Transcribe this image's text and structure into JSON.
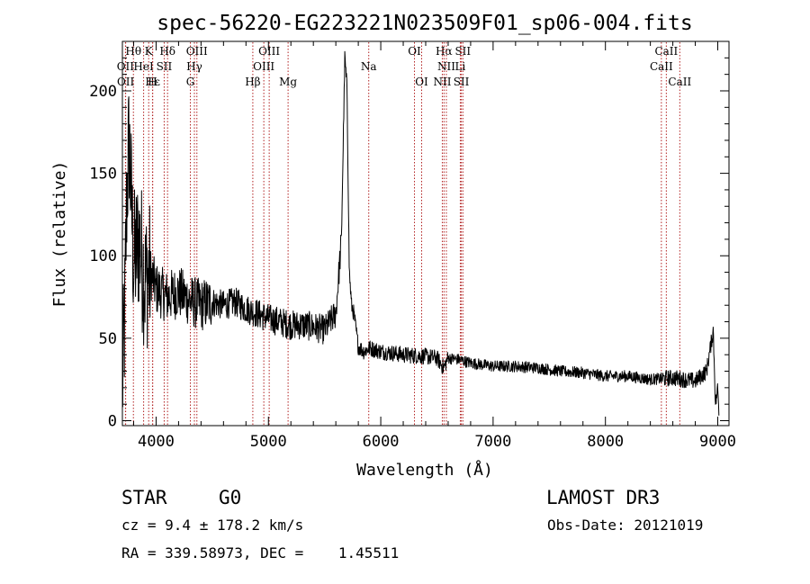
{
  "chart_data": {
    "type": "line",
    "title": "spec-56220-EG223221N023509F01_sp06-004.fits",
    "xlabel": "Wavelength (Å)",
    "ylabel": "Flux (relative)",
    "xlim": [
      3700,
      9100
    ],
    "ylim": [
      -3,
      230
    ],
    "xticks": [
      4000,
      5000,
      6000,
      7000,
      8000,
      9000
    ],
    "yticks": [
      0,
      50,
      100,
      150,
      200
    ],
    "spectrum_anchors": {
      "x": [
        3700,
        3720,
        3740,
        3760,
        3800,
        3850,
        3900,
        3950,
        4000,
        4100,
        4200,
        4300,
        4400,
        4500,
        4600,
        4700,
        4800,
        4900,
        5000,
        5100,
        5200,
        5300,
        5400,
        5500,
        5600,
        5650,
        5680,
        5700,
        5720,
        5740,
        5760,
        5800,
        5850,
        5900,
        6000,
        6200,
        6400,
        6500,
        6560,
        6600,
        6700,
        6800,
        7000,
        7200,
        7400,
        7600,
        7800,
        8000,
        8200,
        8400,
        8600,
        8800,
        8900,
        8960,
        8980,
        9000,
        9010
      ],
      "y": [
        20,
        60,
        140,
        170,
        95,
        110,
        85,
        90,
        80,
        75,
        78,
        73,
        70,
        72,
        70,
        72,
        68,
        65,
        62,
        60,
        58,
        58,
        57,
        55,
        65,
        110,
        220,
        200,
        90,
        70,
        65,
        45,
        42,
        44,
        42,
        40,
        39,
        38,
        32,
        38,
        37,
        35,
        33,
        33,
        32,
        30,
        29,
        27,
        27,
        25,
        26,
        24,
        30,
        55,
        10,
        20,
        5
      ]
    },
    "lines": [
      {
        "label": "Hθ",
        "x": 3798,
        "row": 0
      },
      {
        "label": "K",
        "x": 3934,
        "row": 0
      },
      {
        "label": "Hδ",
        "x": 4102,
        "row": 0
      },
      {
        "label": "OIII",
        "x": 4363,
        "row": 0
      },
      {
        "label": "OIII",
        "x": 5007,
        "row": 0
      },
      {
        "label": "OI",
        "x": 6300,
        "row": 0
      },
      {
        "label": "Hα",
        "x": 6563,
        "row": 0
      },
      {
        "label": "SII",
        "x": 6731,
        "row": 0
      },
      {
        "label": "CaII",
        "x": 8542,
        "row": 0
      },
      {
        "label": "OII",
        "x": 3727,
        "row": 1
      },
      {
        "label": "HeI",
        "x": 3889,
        "row": 1
      },
      {
        "label": "SII",
        "x": 4072,
        "row": 1
      },
      {
        "label": "Hγ",
        "x": 4341,
        "row": 1
      },
      {
        "label": "OIII",
        "x": 4959,
        "row": 1
      },
      {
        "label": "Na",
        "x": 5893,
        "row": 1
      },
      {
        "label": "NII",
        "x": 6584,
        "row": 1
      },
      {
        "label": "Li",
        "x": 6708,
        "row": 1
      },
      {
        "label": "CaII",
        "x": 8498,
        "row": 1
      },
      {
        "label": "OII",
        "x": 3729,
        "row": 2
      },
      {
        "label": "Hε",
        "x": 3970,
        "row": 2
      },
      {
        "label": "H",
        "x": 3968,
        "row": 2
      },
      {
        "label": "G",
        "x": 4305,
        "row": 2
      },
      {
        "label": "Hβ",
        "x": 4861,
        "row": 2
      },
      {
        "label": "Mg",
        "x": 5175,
        "row": 2
      },
      {
        "label": "OI",
        "x": 6364,
        "row": 2
      },
      {
        "label": "NII",
        "x": 6548,
        "row": 2
      },
      {
        "label": "SII",
        "x": 6717,
        "row": 2
      },
      {
        "label": "CaII",
        "x": 8662,
        "row": 2
      }
    ],
    "line_color": "#b22222",
    "data_color": "#000000"
  },
  "info": {
    "class": "STAR",
    "subclass": "G0",
    "survey": "LAMOST DR3",
    "cz": "cz = 9.4 ± 178.2 km/s",
    "obs_date": "Obs-Date: 20121019",
    "radec": "RA = 339.58973, DEC =    1.45511"
  }
}
